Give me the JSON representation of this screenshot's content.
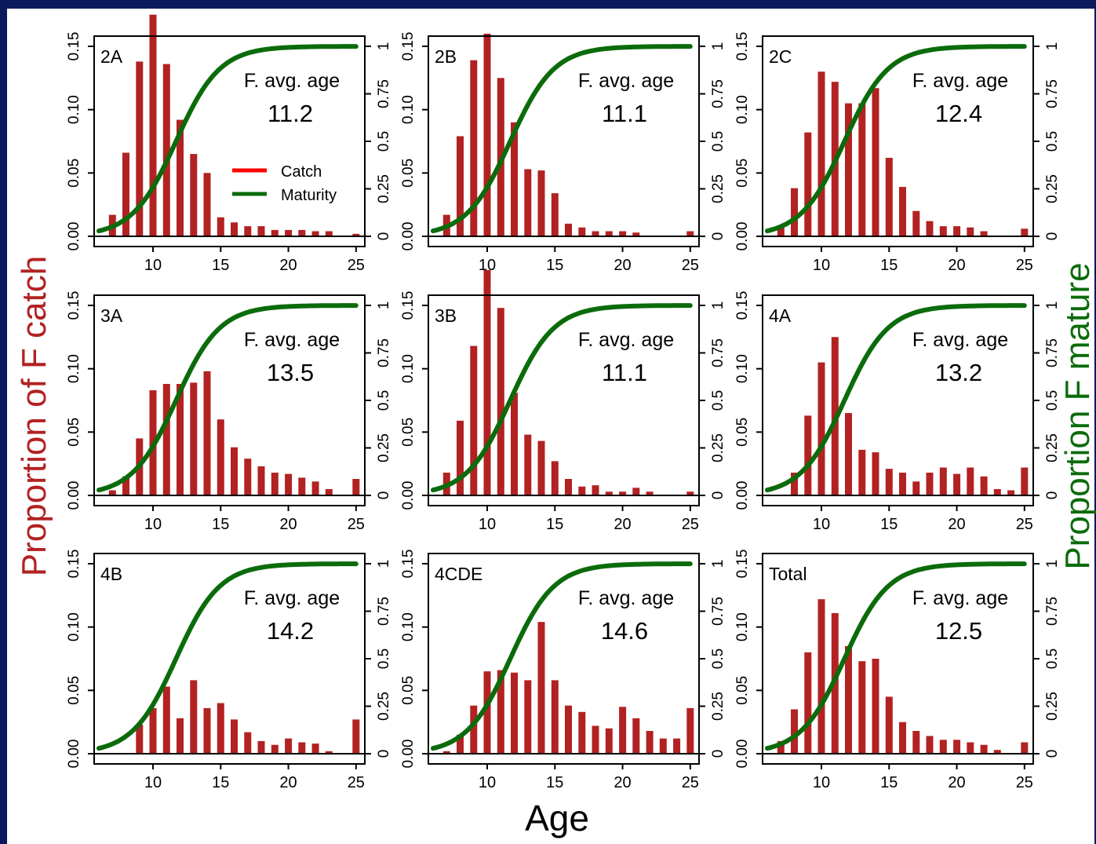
{
  "axis_labels": {
    "left": "Proportion of F catch",
    "right": "Proportion F mature",
    "bottom": "Age"
  },
  "colors": {
    "catch": "#b22222",
    "maturity": "#0b6b0b",
    "legend_catch": "#ff0000",
    "frame_band": "#0a1a5c"
  },
  "legend": {
    "catch_label": "Catch",
    "maturity_label": "Maturity"
  },
  "avg_label": "F. avg. age",
  "chart_data": [
    {
      "type": "bar",
      "region": "2A",
      "avg_age": "11.2",
      "ylim": [
        0,
        0.15
      ],
      "y2lim": [
        0,
        1
      ],
      "x": [
        7,
        8,
        9,
        10,
        11,
        12,
        13,
        14,
        15,
        16,
        17,
        18,
        19,
        20,
        21,
        22,
        23,
        24,
        25
      ],
      "values": [
        0.017,
        0.066,
        0.138,
        0.175,
        0.136,
        0.092,
        0.065,
        0.05,
        0.015,
        0.011,
        0.008,
        0.008,
        0.005,
        0.005,
        0.005,
        0.004,
        0.004,
        0.0,
        0.002
      ]
    },
    {
      "type": "bar",
      "region": "2B",
      "avg_age": "11.1",
      "ylim": [
        0,
        0.15
      ],
      "y2lim": [
        0,
        1
      ],
      "x": [
        7,
        8,
        9,
        10,
        11,
        12,
        13,
        14,
        15,
        16,
        17,
        18,
        19,
        20,
        21,
        22,
        23,
        24,
        25
      ],
      "values": [
        0.017,
        0.079,
        0.139,
        0.16,
        0.125,
        0.09,
        0.053,
        0.052,
        0.034,
        0.01,
        0.007,
        0.004,
        0.004,
        0.004,
        0.003,
        0.0,
        0.0,
        0.0,
        0.004
      ]
    },
    {
      "type": "bar",
      "region": "2C",
      "avg_age": "12.4",
      "ylim": [
        0,
        0.15
      ],
      "y2lim": [
        0,
        1
      ],
      "x": [
        7,
        8,
        9,
        10,
        11,
        12,
        13,
        14,
        15,
        16,
        17,
        18,
        19,
        20,
        21,
        22,
        23,
        24,
        25
      ],
      "values": [
        0.008,
        0.038,
        0.082,
        0.13,
        0.122,
        0.105,
        0.105,
        0.117,
        0.062,
        0.039,
        0.02,
        0.012,
        0.008,
        0.008,
        0.007,
        0.004,
        0.0,
        0.0,
        0.006
      ]
    },
    {
      "type": "bar",
      "region": "3A",
      "avg_age": "13.5",
      "ylim": [
        0,
        0.15
      ],
      "y2lim": [
        0,
        1
      ],
      "x": [
        7,
        8,
        9,
        10,
        11,
        12,
        13,
        14,
        15,
        16,
        17,
        18,
        19,
        20,
        21,
        22,
        23,
        24,
        25
      ],
      "values": [
        0.004,
        0.015,
        0.045,
        0.083,
        0.088,
        0.088,
        0.089,
        0.098,
        0.06,
        0.038,
        0.029,
        0.023,
        0.018,
        0.017,
        0.014,
        0.011,
        0.005,
        0.0,
        0.013
      ]
    },
    {
      "type": "bar",
      "region": "3B",
      "avg_age": "11.1",
      "ylim": [
        0,
        0.15
      ],
      "y2lim": [
        0,
        1
      ],
      "x": [
        7,
        8,
        9,
        10,
        11,
        12,
        13,
        14,
        15,
        16,
        17,
        18,
        19,
        20,
        21,
        22,
        23,
        24,
        25
      ],
      "values": [
        0.018,
        0.059,
        0.118,
        0.178,
        0.148,
        0.081,
        0.048,
        0.043,
        0.027,
        0.013,
        0.007,
        0.008,
        0.003,
        0.003,
        0.006,
        0.003,
        0.0,
        0.0,
        0.003
      ]
    },
    {
      "type": "bar",
      "region": "4A",
      "avg_age": "13.2",
      "ylim": [
        0,
        0.15
      ],
      "y2lim": [
        0,
        1
      ],
      "x": [
        7,
        8,
        9,
        10,
        11,
        12,
        13,
        14,
        15,
        16,
        17,
        18,
        19,
        20,
        21,
        22,
        23,
        24,
        25
      ],
      "values": [
        0.0,
        0.018,
        0.063,
        0.105,
        0.125,
        0.065,
        0.036,
        0.034,
        0.021,
        0.018,
        0.011,
        0.018,
        0.022,
        0.017,
        0.022,
        0.015,
        0.005,
        0.004,
        0.022
      ]
    },
    {
      "type": "bar",
      "region": "4B",
      "avg_age": "14.2",
      "ylim": [
        0,
        0.15
      ],
      "y2lim": [
        0,
        1
      ],
      "x": [
        7,
        8,
        9,
        10,
        11,
        12,
        13,
        14,
        15,
        16,
        17,
        18,
        19,
        20,
        21,
        22,
        23,
        24,
        25
      ],
      "values": [
        0.0,
        0.0,
        0.023,
        0.036,
        0.053,
        0.028,
        0.058,
        0.036,
        0.04,
        0.027,
        0.017,
        0.01,
        0.007,
        0.012,
        0.009,
        0.008,
        0.002,
        0.0,
        0.027
      ]
    },
    {
      "type": "bar",
      "region": "4CDE",
      "avg_age": "14.6",
      "ylim": [
        0,
        0.15
      ],
      "y2lim": [
        0,
        1
      ],
      "x": [
        7,
        8,
        9,
        10,
        11,
        12,
        13,
        14,
        15,
        16,
        17,
        18,
        19,
        20,
        21,
        22,
        23,
        24,
        25
      ],
      "values": [
        0.002,
        0.015,
        0.038,
        0.065,
        0.066,
        0.064,
        0.058,
        0.104,
        0.058,
        0.038,
        0.033,
        0.022,
        0.02,
        0.037,
        0.028,
        0.018,
        0.012,
        0.012,
        0.036
      ]
    },
    {
      "type": "bar",
      "region": "Total",
      "avg_age": "12.5",
      "ylim": [
        0,
        0.15
      ],
      "y2lim": [
        0,
        1
      ],
      "x": [
        7,
        8,
        9,
        10,
        11,
        12,
        13,
        14,
        15,
        16,
        17,
        18,
        19,
        20,
        21,
        22,
        23,
        24,
        25
      ],
      "values": [
        0.01,
        0.035,
        0.08,
        0.122,
        0.111,
        0.085,
        0.073,
        0.075,
        0.045,
        0.025,
        0.018,
        0.014,
        0.011,
        0.011,
        0.009,
        0.007,
        0.003,
        0.0,
        0.009
      ]
    }
  ]
}
